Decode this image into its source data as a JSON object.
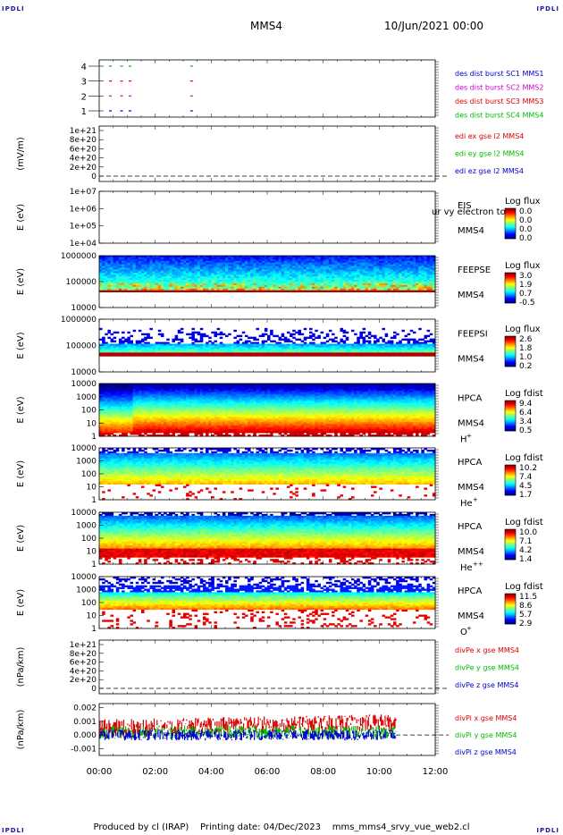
{
  "corner_label": "IPDLI",
  "header": {
    "spacecraft": "MMS4",
    "datetime": "10/Jun/2021 00:00"
  },
  "footer": {
    "produced_by": "Produced by cl (IRAP)",
    "printing_date": "Printing date: 04/Dec/2023",
    "file": "mms_mms4_srvy_vue_web2.cl"
  },
  "colors": {
    "mms1": "#0000cc",
    "mms2": "#cc00cc",
    "mms3": "#dd0000",
    "mms4": "#00bb00",
    "x": "#dd0000",
    "y": "#00bb00",
    "z": "#0000cc"
  },
  "chart_data": [
    {
      "id": "burst",
      "type": "scatter",
      "ylabel": "",
      "yticks": [
        "1",
        "2",
        "3",
        "4"
      ],
      "series": [
        {
          "name": "des dist burst SC1 MMS1",
          "color": "#0000cc",
          "y": 1,
          "x_hours": [
            0.4,
            0.8,
            1.1,
            3.3
          ]
        },
        {
          "name": "des dist burst SC2 MMS2",
          "color": "#cc00cc",
          "y": 2,
          "x_hours": [
            0.4,
            0.8,
            1.1,
            3.3
          ]
        },
        {
          "name": "des dist burst SC3 MMS3",
          "color": "#dd0000",
          "y": 3,
          "x_hours": [
            0.4,
            0.8,
            1.1,
            3.3
          ]
        },
        {
          "name": "des dist burst SC4 MMS4",
          "color": "#00bb00",
          "y": 4,
          "x_hours": [
            0.4,
            0.8,
            1.1,
            3.3
          ]
        }
      ]
    },
    {
      "id": "edi",
      "type": "line",
      "ylabel": "(mV/m)",
      "yticks": [
        "0",
        "2e+20",
        "4e+20",
        "6e+20",
        "8e+20",
        "1e+21"
      ],
      "series": [
        {
          "name": "edi ex gse l2 MMS4",
          "color": "#dd0000"
        },
        {
          "name": "edi ey gse l2 MMS4",
          "color": "#00bb00"
        },
        {
          "name": "edi ez gse l2 MMS4",
          "color": "#0000cc"
        }
      ]
    },
    {
      "id": "eis",
      "type": "heatmap",
      "ylabel": "E (eV)",
      "yticks": [
        "1e+04",
        "1e+05",
        "1e+06",
        "1e+07"
      ],
      "instrument": "EIS",
      "spacecraft": "MMS4",
      "overlay": "ur vy electron to",
      "colorbar_title": "Log flux",
      "colorbar_ticks": [
        "0.0",
        "0.0",
        "0.0",
        "0.0"
      ]
    },
    {
      "id": "feepse",
      "type": "heatmap",
      "ylabel": "E (eV)",
      "yticks": [
        "10000",
        "100000",
        "1000000"
      ],
      "instrument": "FEEPSE",
      "spacecraft": "MMS4",
      "colorbar_title": "Log flux",
      "colorbar_ticks": [
        "3.0",
        "1.9",
        "0.7",
        "-0.5"
      ]
    },
    {
      "id": "feepsi",
      "type": "heatmap",
      "ylabel": "E (eV)",
      "yticks": [
        "10000",
        "100000",
        "1000000"
      ],
      "instrument": "FEEPSI",
      "spacecraft": "MMS4",
      "colorbar_title": "Log flux",
      "colorbar_ticks": [
        "2.6",
        "1.8",
        "1.0",
        "0.2"
      ]
    },
    {
      "id": "hpca_h",
      "type": "heatmap",
      "ylabel": "E (eV)",
      "yticks": [
        "1",
        "10",
        "100",
        "1000",
        "10000"
      ],
      "instrument": "HPCA",
      "spacecraft": "MMS4",
      "species": "H",
      "charge": "+",
      "colorbar_title": "Log fdist",
      "colorbar_ticks": [
        "9.4",
        "6.4",
        "3.4",
        "0.5"
      ]
    },
    {
      "id": "hpca_he",
      "type": "heatmap",
      "ylabel": "E (eV)",
      "yticks": [
        "1",
        "10",
        "100",
        "1000",
        "10000"
      ],
      "instrument": "HPCA",
      "spacecraft": "MMS4",
      "species": "He",
      "charge": "+",
      "colorbar_title": "Log fdist",
      "colorbar_ticks": [
        "10.2",
        "7.4",
        "4.5",
        "1.7"
      ]
    },
    {
      "id": "hpca_hepp",
      "type": "heatmap",
      "ylabel": "E (eV)",
      "yticks": [
        "1",
        "10",
        "100",
        "1000",
        "10000"
      ],
      "instrument": "HPCA",
      "spacecraft": "MMS4",
      "species": "He",
      "charge": "++",
      "colorbar_title": "Log fdist",
      "colorbar_ticks": [
        "10.0",
        "7.1",
        "4.2",
        "1.4"
      ]
    },
    {
      "id": "hpca_o",
      "type": "heatmap",
      "ylabel": "E (eV)",
      "yticks": [
        "1",
        "10",
        "100",
        "1000",
        "10000"
      ],
      "instrument": "HPCA",
      "spacecraft": "MMS4",
      "species": "O",
      "charge": "+",
      "colorbar_title": "Log fdist",
      "colorbar_ticks": [
        "11.5",
        "8.6",
        "5.7",
        "2.9"
      ]
    },
    {
      "id": "divpe",
      "type": "line",
      "ylabel": "(nPa/km)",
      "yticks": [
        "0",
        "2e+20",
        "4e+20",
        "6e+20",
        "8e+20",
        "1e+21"
      ],
      "series": [
        {
          "name": "divPe x gse MMS4",
          "color": "#dd0000"
        },
        {
          "name": "divPe y gse MMS4",
          "color": "#00bb00"
        },
        {
          "name": "divPe z gse MMS4",
          "color": "#0000cc"
        }
      ]
    },
    {
      "id": "divpi",
      "type": "line",
      "ylabel": "(nPa/km)",
      "yticks": [
        "-0.001",
        "0.000",
        "0.001",
        "0.002"
      ],
      "ylim": [
        -0.0015,
        0.0023
      ],
      "x_end_hours": 10.6,
      "series": [
        {
          "name": "divPi x gse MMS4",
          "color": "#dd0000",
          "mean": 0.0005,
          "spread": 0.0008
        },
        {
          "name": "divPi y gse MMS4",
          "color": "#00bb00",
          "mean": 0.0002,
          "spread": 0.0006
        },
        {
          "name": "divPi z gse MMS4",
          "color": "#0000cc",
          "mean": 0.0,
          "spread": 0.0005
        }
      ]
    }
  ],
  "xaxis": {
    "ticks": [
      "00:00",
      "02:00",
      "04:00",
      "06:00",
      "08:00",
      "10:00",
      "12:00"
    ],
    "range_hours": [
      0,
      12
    ]
  }
}
